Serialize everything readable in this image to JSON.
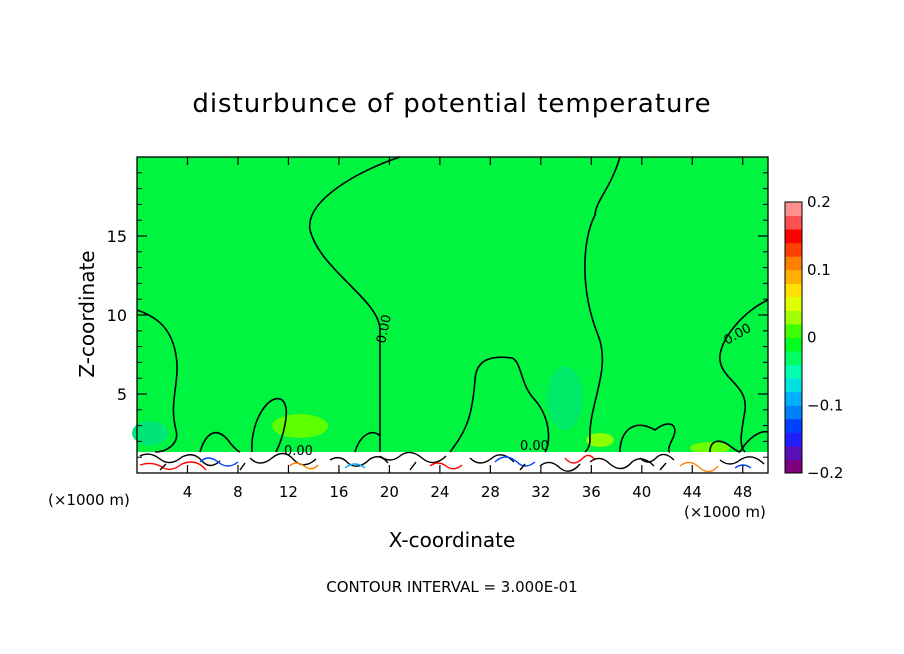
{
  "chart_data": {
    "type": "heatmap",
    "title": "disturbunce of potential temperature",
    "xlabel": "X-coordinate",
    "ylabel": "Z-coordinate",
    "x_unit_note_left": "(×1000 m)",
    "x_unit_note_right": "(×1000 m)",
    "xlim": [
      0,
      50
    ],
    "ylim": [
      0,
      20
    ],
    "x_ticks": [
      4,
      8,
      12,
      16,
      20,
      24,
      28,
      32,
      36,
      40,
      44,
      48
    ],
    "y_ticks": [
      5,
      10,
      15
    ],
    "contour_label": "0.00",
    "footer": "CONTOUR INTERVAL = 3.000E-01",
    "colorbar": {
      "range": [
        -0.2,
        0.2
      ],
      "tick_values": [
        0.2,
        0.1,
        0,
        -0.1,
        -0.2
      ],
      "tick_labels": [
        "0.2",
        "0.1",
        "0",
        "−0.1",
        "−0.2"
      ],
      "colors": [
        "#7f007f",
        "#5a10b8",
        "#2020ff",
        "#0040ff",
        "#0080ff",
        "#00b0ff",
        "#00e0e0",
        "#00ffb0",
        "#00ff60",
        "#00ff20",
        "#40ff00",
        "#a0ff00",
        "#e0ff00",
        "#ffe000",
        "#ffb000",
        "#ff8000",
        "#ff4000",
        "#ff0000",
        "#ff5050",
        "#ff9090"
      ]
    },
    "field_color": "#00f540"
  }
}
